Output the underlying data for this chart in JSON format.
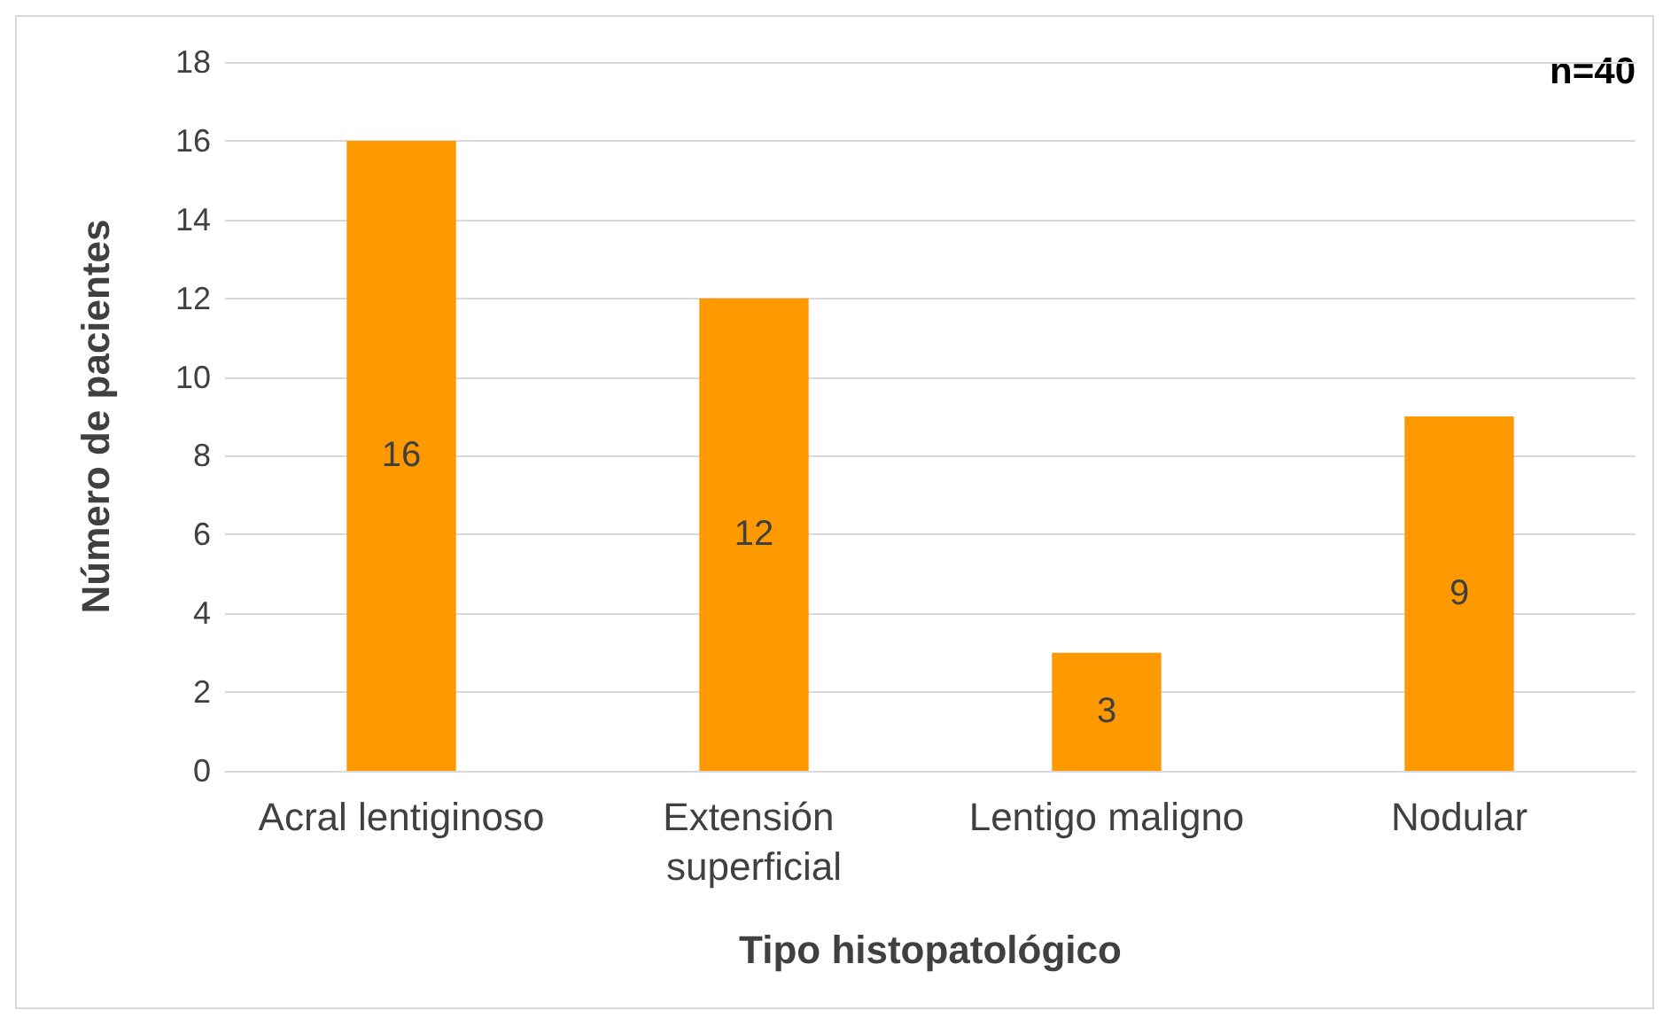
{
  "chart_data": {
    "type": "bar",
    "xlabel": "Tipo histopatológico",
    "ylabel": "Número de pacientes",
    "categories": [
      "Acral lentiginoso",
      "Extensión superficial",
      "Lentigo maligno",
      "Nodular"
    ],
    "values": [
      16,
      12,
      3,
      9
    ],
    "color": "#ff9900",
    "ylim": [
      0,
      18
    ],
    "yticks": [
      0,
      2,
      4,
      6,
      8,
      10,
      12,
      14,
      16,
      18
    ],
    "grid": "y",
    "data_labels": true,
    "annotations": [
      "n=40"
    ]
  }
}
